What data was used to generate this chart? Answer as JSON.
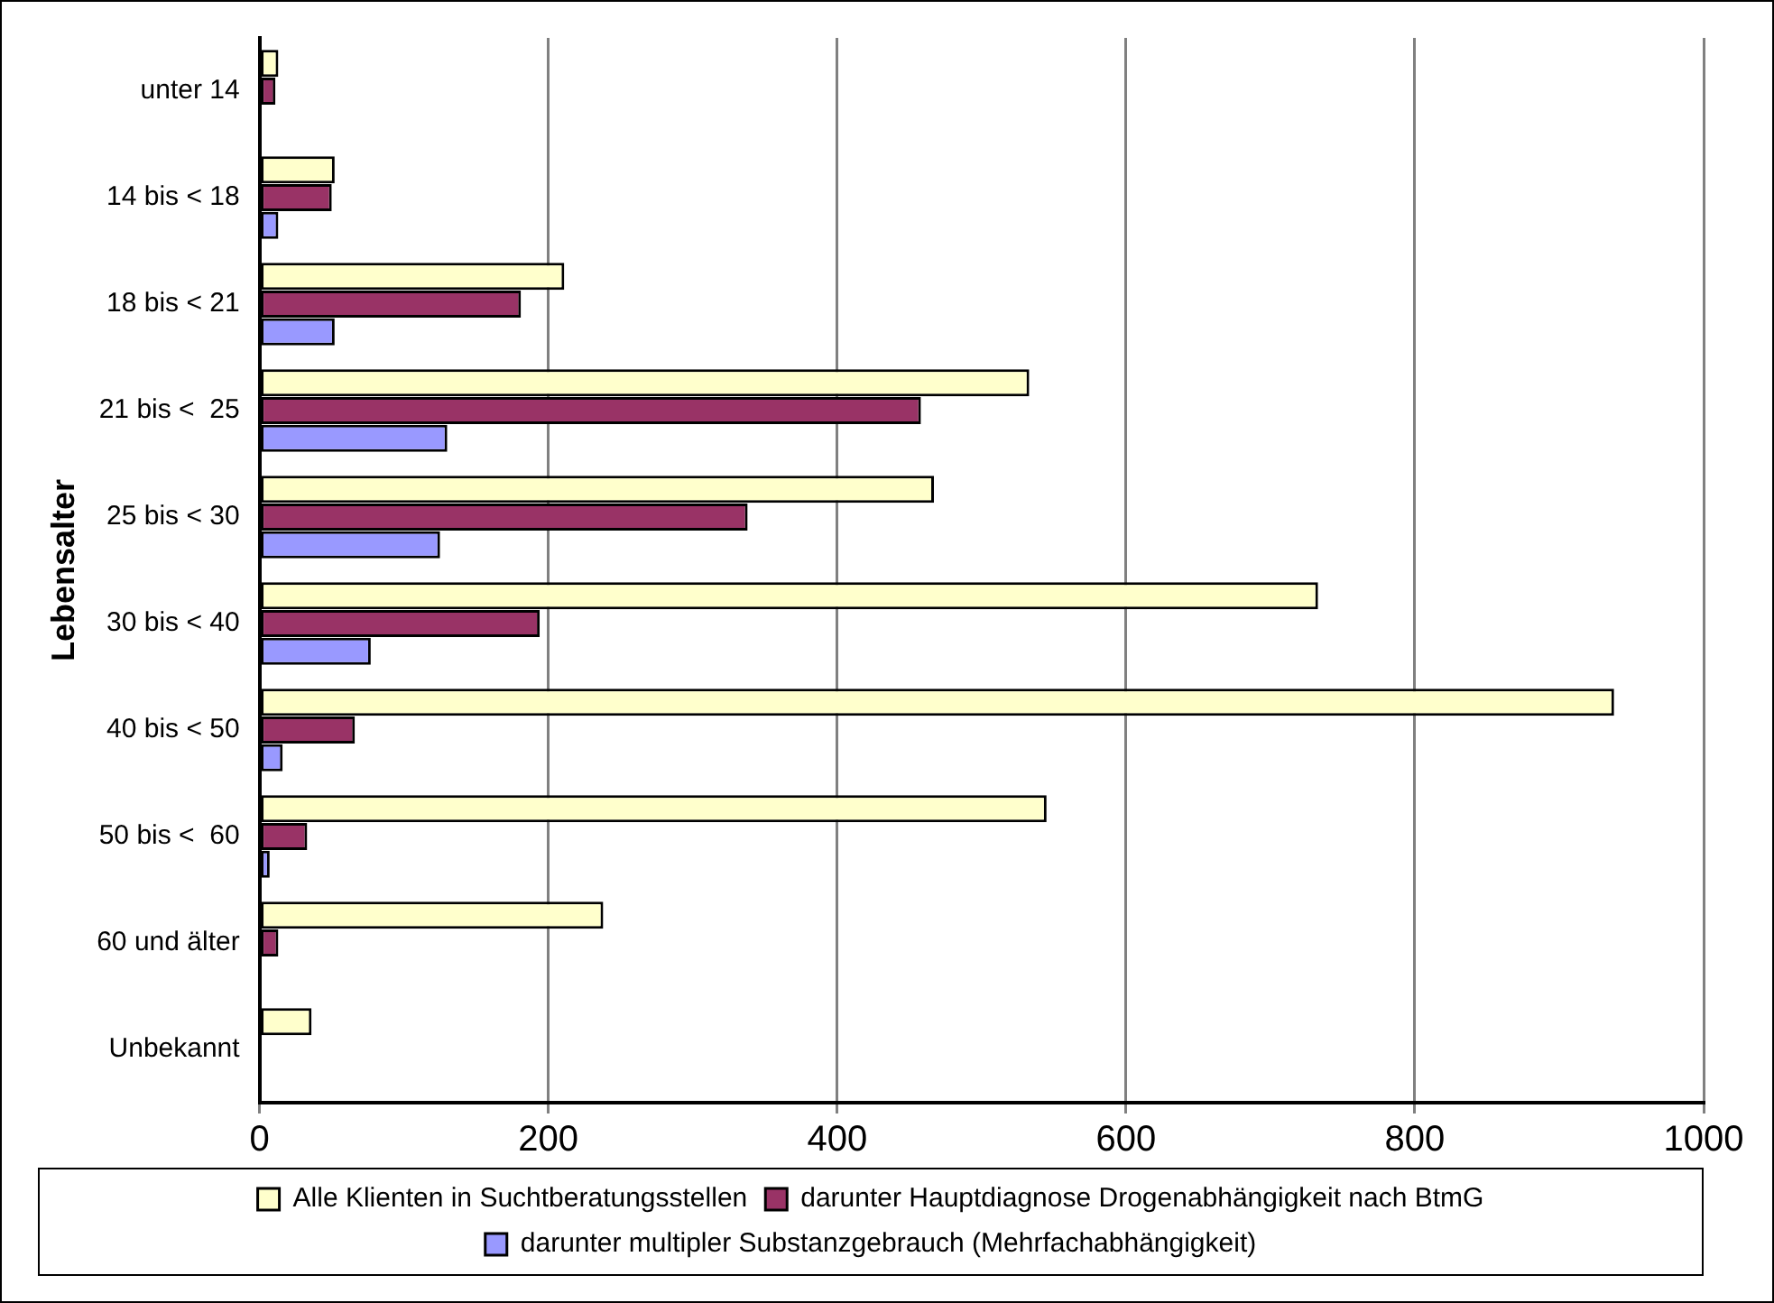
{
  "chart_data": {
    "type": "bar",
    "orientation": "horizontal",
    "ylabel": "Lebensalter",
    "categories": [
      "unter 14",
      "14 bis < 18",
      "18 bis < 21",
      "21 bis <  25",
      "25 bis < 30",
      "30 bis < 40",
      "40 bis < 50",
      "50 bis <  60",
      "60 und älter",
      "Unbekannt"
    ],
    "series": [
      {
        "name": "Alle Klienten in Suchtberatungsstellen",
        "color": "#ffffcc",
        "values": [
          13,
          52,
          211,
          533,
          467,
          733,
          938,
          545,
          238,
          36
        ]
      },
      {
        "name": "darunter Hauptdiagnose Drogenabhängigkeit nach BtmG",
        "color": "#993366",
        "values": [
          11,
          50,
          181,
          458,
          338,
          194,
          66,
          33,
          13,
          null
        ]
      },
      {
        "name": "darunter multipler Substanzgebrauch (Mehrfachabhängigkeit)",
        "color": "#9999ff",
        "values": [
          null,
          13,
          52,
          130,
          125,
          77,
          16,
          7,
          null,
          null
        ]
      }
    ],
    "xlim": [
      0,
      1000
    ],
    "xticks": [
      0,
      200,
      400,
      600,
      800,
      1000
    ],
    "grid": "x",
    "legend": "bottom"
  }
}
